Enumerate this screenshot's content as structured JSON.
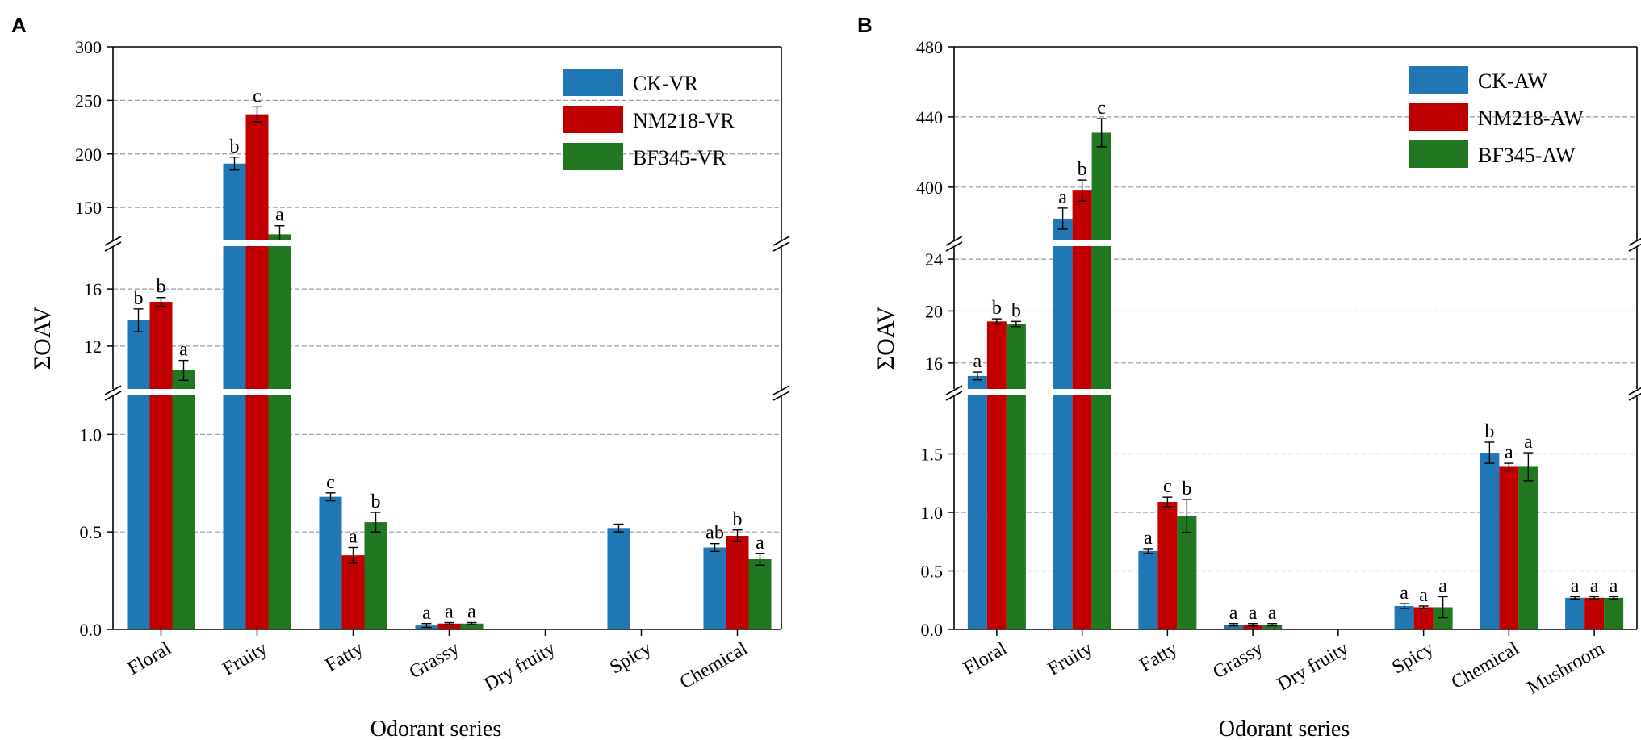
{
  "chart_data": [
    {
      "type": "bar",
      "panel_label": "A",
      "xlabel": "Odorant series",
      "ylabel": "ΣOAV",
      "categories": [
        "Floral",
        "Fruity",
        "Fatty",
        "Grassy",
        "Dry fruity",
        "Spicy",
        "Chemical"
      ],
      "series": [
        {
          "name": "CK-VR",
          "color": "#1f77b4",
          "values": [
            13.8,
            191,
            0.68,
            0.02,
            null,
            0.52,
            0.42
          ],
          "errors": [
            0.8,
            6,
            0.02,
            0.01,
            null,
            0.02,
            0.02
          ],
          "letters": [
            "b",
            "b",
            "c",
            "a",
            "",
            "",
            "ab"
          ]
        },
        {
          "name": "NM218-VR",
          "color": "#c00000",
          "values": [
            15.1,
            237,
            0.38,
            0.03,
            null,
            null,
            0.48
          ],
          "errors": [
            0.3,
            7,
            0.04,
            0.005,
            null,
            null,
            0.03
          ],
          "letters": [
            "b",
            "c",
            "a",
            "a",
            "",
            "",
            "b"
          ]
        },
        {
          "name": "BF345-VR",
          "color": "#217821",
          "values": [
            10.3,
            125,
            0.55,
            0.03,
            null,
            null,
            0.36
          ],
          "errors": [
            0.7,
            8,
            0.05,
            0.005,
            null,
            null,
            0.03
          ],
          "letters": [
            "a",
            "a",
            "b",
            "a",
            "",
            "",
            "a"
          ]
        }
      ],
      "y_segments": [
        {
          "range": [
            0,
            1.2
          ],
          "ticks": [
            "0.0",
            "0.5",
            "1.0"
          ]
        },
        {
          "range": [
            9,
            19
          ],
          "ticks": [
            "12",
            "16"
          ]
        },
        {
          "range": [
            120,
            300
          ],
          "ticks": [
            "150",
            "200",
            "250",
            "300"
          ]
        }
      ],
      "legend_position": "top-right"
    },
    {
      "type": "bar",
      "panel_label": "B",
      "xlabel": "Odorant series",
      "ylabel": "ΣOAV",
      "categories": [
        "Floral",
        "Fruity",
        "Fatty",
        "Grassy",
        "Dry fruity",
        "Spicy",
        "Chemical",
        "Mushroom"
      ],
      "series": [
        {
          "name": "CK-AW",
          "color": "#1f77b4",
          "values": [
            15.0,
            382,
            0.67,
            0.04,
            null,
            0.2,
            1.51,
            0.27
          ],
          "errors": [
            0.3,
            6,
            0.02,
            0.01,
            null,
            0.02,
            0.09,
            0.01
          ],
          "letters": [
            "a",
            "a",
            "a",
            "a",
            "",
            "a",
            "b",
            "a"
          ]
        },
        {
          "name": "NM218-AW",
          "color": "#c00000",
          "values": [
            19.2,
            398,
            1.09,
            0.04,
            null,
            0.19,
            1.39,
            0.27
          ],
          "errors": [
            0.2,
            6,
            0.04,
            0.01,
            null,
            0.01,
            0.03,
            0.01
          ],
          "letters": [
            "b",
            "b",
            "c",
            "a",
            "",
            "a",
            "a",
            "a"
          ]
        },
        {
          "name": "BF345-AW",
          "color": "#217821",
          "values": [
            19.0,
            431,
            0.97,
            0.04,
            null,
            0.19,
            1.39,
            0.27
          ],
          "errors": [
            0.2,
            8,
            0.14,
            0.01,
            null,
            0.09,
            0.12,
            0.01
          ],
          "letters": [
            "b",
            "c",
            "b",
            "a",
            "",
            "a",
            "a",
            "a"
          ]
        }
      ],
      "y_segments": [
        {
          "range": [
            0,
            2.0
          ],
          "ticks": [
            "0.0",
            "0.5",
            "1.0",
            "1.5"
          ]
        },
        {
          "range": [
            14,
            25
          ],
          "ticks": [
            "16",
            "20",
            "24"
          ]
        },
        {
          "range": [
            370,
            480
          ],
          "ticks": [
            "400",
            "440",
            "480"
          ]
        }
      ],
      "legend_position": "top-right"
    }
  ]
}
